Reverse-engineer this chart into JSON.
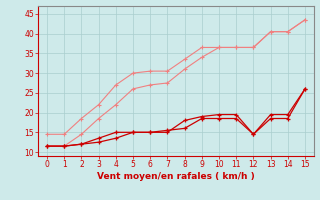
{
  "x": [
    0,
    1,
    2,
    3,
    4,
    5,
    6,
    7,
    8,
    9,
    10,
    11,
    12,
    13,
    14,
    15
  ],
  "line1": [
    14.5,
    14.5,
    18.5,
    22.0,
    27.0,
    30.0,
    30.5,
    30.5,
    33.5,
    36.5,
    36.5,
    36.5,
    36.5,
    40.5,
    40.5,
    43.5
  ],
  "line2": [
    11.5,
    11.5,
    14.5,
    18.5,
    22.0,
    26.0,
    27.0,
    27.5,
    31.0,
    34.0,
    36.5,
    36.5,
    36.5,
    40.5,
    40.5,
    43.5
  ],
  "line3": [
    11.5,
    11.5,
    12.0,
    12.5,
    13.5,
    15.0,
    15.0,
    15.0,
    18.0,
    19.0,
    19.5,
    19.5,
    14.5,
    19.5,
    19.5,
    26.0
  ],
  "line4": [
    11.5,
    11.5,
    12.0,
    13.5,
    15.0,
    15.0,
    15.0,
    15.5,
    16.0,
    18.5,
    18.5,
    18.5,
    14.5,
    18.5,
    18.5,
    26.0
  ],
  "color_light": "#f08080",
  "color_dark": "#cc0000",
  "xlabel": "Vent moyen/en rafales ( km/h )",
  "bg_color": "#ceeaea",
  "grid_color": "#aacece",
  "xlim": [
    -0.5,
    15.5
  ],
  "ylim": [
    9,
    47
  ],
  "yticks": [
    10,
    15,
    20,
    25,
    30,
    35,
    40,
    45
  ],
  "xticks": [
    0,
    1,
    2,
    3,
    4,
    5,
    6,
    7,
    8,
    9,
    10,
    11,
    12,
    13,
    14,
    15
  ]
}
